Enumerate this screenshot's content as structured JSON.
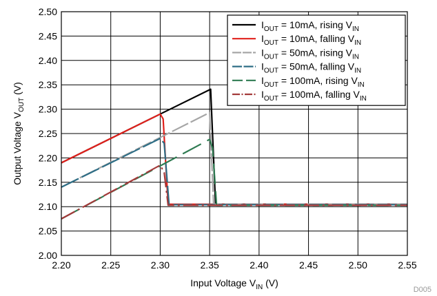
{
  "chart_data": {
    "type": "line",
    "xlabel": {
      "main": "Input Voltage V",
      "sub": "IN",
      "suffix": " (V)"
    },
    "ylabel": {
      "main": "Output Voltage V",
      "sub": "OUT",
      "suffix": " (V)"
    },
    "xlim": [
      2.2,
      2.55
    ],
    "ylim": [
      2.0,
      2.5
    ],
    "x_ticks": [
      "2.20",
      "2.25",
      "2.30",
      "2.35",
      "2.40",
      "2.45",
      "2.50",
      "2.55"
    ],
    "y_ticks": [
      "2.00",
      "2.05",
      "2.10",
      "2.15",
      "2.20",
      "2.25",
      "2.30",
      "2.35",
      "2.40",
      "2.45",
      "2.50"
    ],
    "grid": true,
    "legend_position": "top-right",
    "figure_code": "D005",
    "series": [
      {
        "name": "I_OUT = 10mA, rising V_IN",
        "label": {
          "a": "I",
          "b": "OUT",
          "c": " = 10mA, rising V",
          "d": "IN"
        },
        "color": "#000000",
        "dash": "",
        "x": [
          2.2,
          2.3,
          2.351,
          2.356,
          2.55
        ],
        "y": [
          2.19,
          2.29,
          2.341,
          2.105,
          2.105
        ]
      },
      {
        "name": "I_OUT = 10mA, falling V_IN",
        "label": {
          "a": "I",
          "b": "OUT",
          "c": " = 10mA, falling V",
          "d": "IN"
        },
        "color": "#e0201b",
        "dash": "",
        "x": [
          2.2,
          2.3,
          2.303,
          2.308,
          2.55
        ],
        "y": [
          2.19,
          2.29,
          2.28,
          2.105,
          2.105
        ]
      },
      {
        "name": "I_OUT = 50mA, rising V_IN",
        "label": {
          "a": "I",
          "b": "OUT",
          "c": " = 50mA, rising V",
          "d": "IN"
        },
        "color": "#a6a6a6",
        "dash": "26 4",
        "x": [
          2.2,
          2.35,
          2.354,
          2.55
        ],
        "y": [
          2.14,
          2.293,
          2.105,
          2.105
        ]
      },
      {
        "name": "I_OUT = 50mA, falling V_IN",
        "label": {
          "a": "I",
          "b": "OUT",
          "c": " = 50mA, falling V",
          "d": "IN"
        },
        "color": "#2e6e86",
        "dash": "28 5",
        "x": [
          2.2,
          2.3,
          2.304,
          2.309,
          2.55
        ],
        "y": [
          2.14,
          2.24,
          2.23,
          2.104,
          2.104
        ]
      },
      {
        "name": "I_OUT = 100mA, rising V_IN",
        "label": {
          "a": "I",
          "b": "OUT",
          "c": " = 100mA, rising V",
          "d": "IN"
        },
        "color": "#2f7b52",
        "dash": "30 10",
        "x": [
          2.2,
          2.35,
          2.353,
          2.357,
          2.55
        ],
        "y": [
          2.075,
          2.238,
          2.22,
          2.103,
          2.103
        ]
      },
      {
        "name": "I_OUT = 100mA, falling V_IN",
        "label": {
          "a": "I",
          "b": "OUT",
          "c": " = 100mA, falling V",
          "d": "IN"
        },
        "color": "#a33a3a",
        "dash": "22 5 3 5",
        "x": [
          2.2,
          2.3,
          2.304,
          2.308,
          2.55
        ],
        "y": [
          2.075,
          2.185,
          2.17,
          2.103,
          2.103
        ]
      }
    ]
  }
}
